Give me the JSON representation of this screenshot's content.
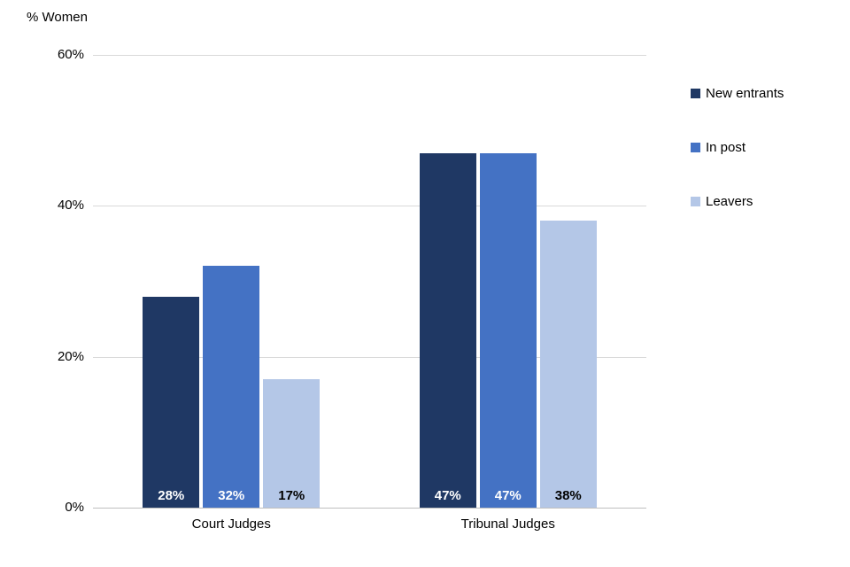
{
  "chart_data": {
    "type": "bar",
    "title": "% Women",
    "categories": [
      "Court Judges",
      "Tribunal Judges"
    ],
    "series": [
      {
        "name": "New entrants",
        "color": "#1F3864",
        "label_color": "#FFFFFF",
        "values": [
          28,
          47
        ]
      },
      {
        "name": "In post",
        "color": "#4472C4",
        "label_color": "#FFFFFF",
        "values": [
          32,
          47
        ]
      },
      {
        "name": "Leavers",
        "color": "#B4C7E7",
        "label_color": "#000000",
        "values": [
          17,
          38
        ]
      }
    ],
    "value_suffix": "%",
    "ylim": [
      0,
      60
    ],
    "ytick_values": [
      0,
      20,
      40,
      60
    ],
    "yticks": [
      "0%",
      "20%",
      "40%",
      "60%"
    ],
    "grid": true,
    "legend_position": "right",
    "axis_color": "#BFBFBF",
    "gridline_color": "#D9D9D9"
  }
}
